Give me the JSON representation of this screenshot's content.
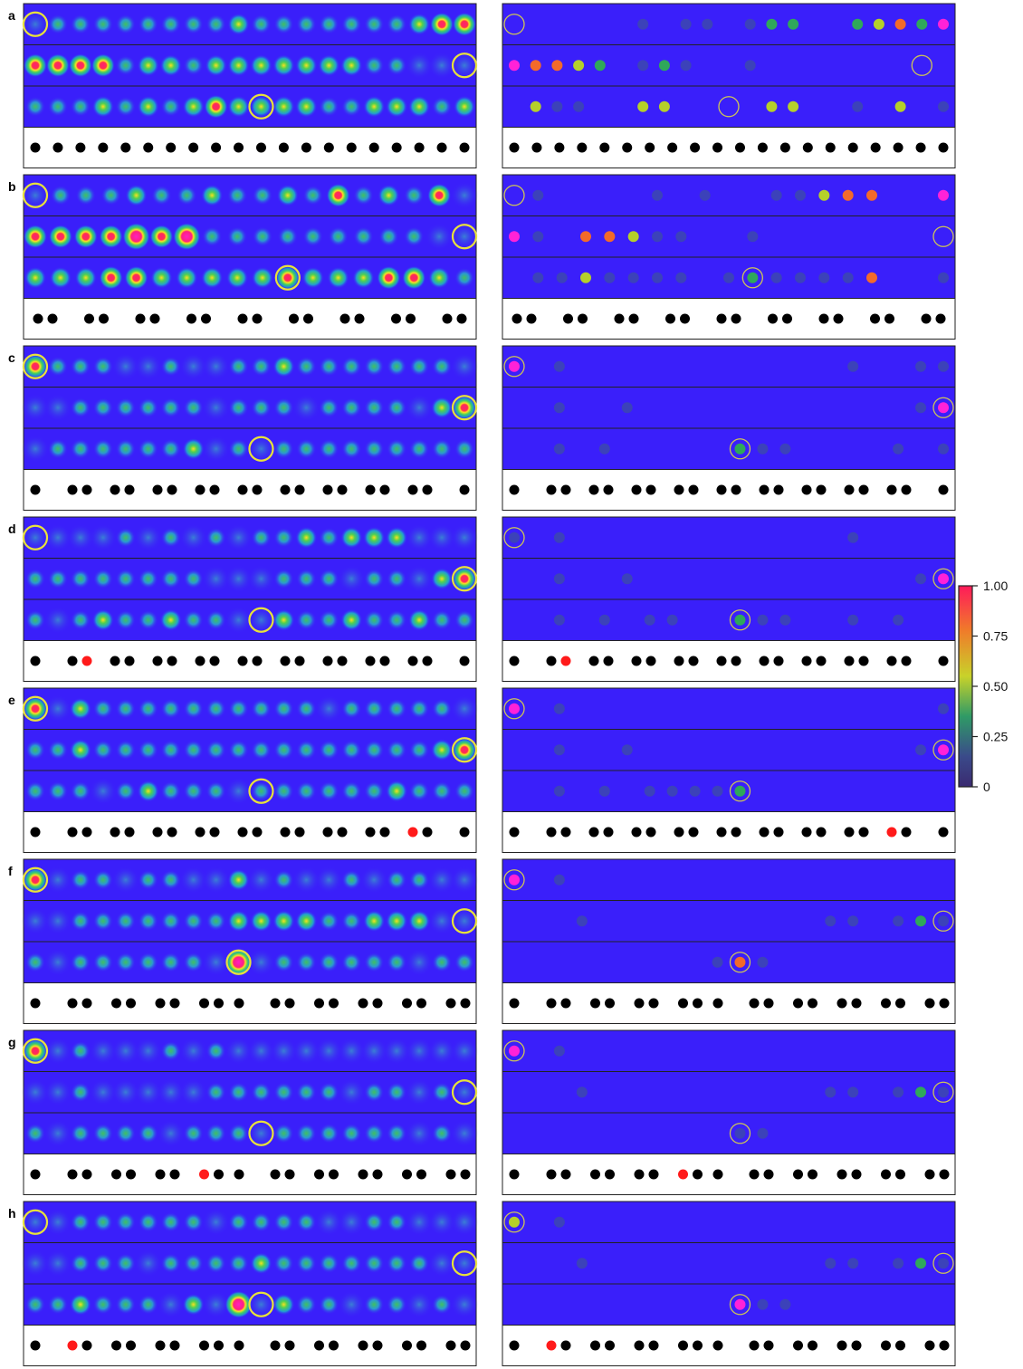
{
  "colors": {
    "background_blue": "#3a1ffa",
    "ring": "#e8e23a",
    "atom_black": "#000000",
    "atom_red": "#ff1a1a",
    "frame": "#222222"
  },
  "colorbar": {
    "ticks": [
      "1.00",
      "0.75",
      "0.50",
      "0.25",
      "0"
    ],
    "stops": [
      "#ff1a5a",
      "#f07a2a",
      "#c8d22a",
      "#3a9a60",
      "#3a3a8a",
      "#3a2a78"
    ]
  },
  "panels": [
    {
      "label": "a",
      "row_dots": [
        [
          0,
          1,
          1,
          1,
          1,
          1,
          1,
          1,
          1,
          2,
          1,
          1,
          1,
          1,
          1,
          1,
          1,
          2,
          3,
          3
        ],
        [
          3,
          3,
          3,
          3,
          1,
          2,
          2,
          1,
          2,
          2,
          2,
          2,
          2,
          2,
          2,
          1,
          1,
          0,
          0,
          0
        ],
        [
          1,
          1,
          1,
          2,
          1,
          2,
          1,
          2,
          3,
          2,
          2,
          2,
          2,
          1,
          1,
          2,
          2,
          2,
          1,
          2
        ]
      ],
      "row_rings": [
        0,
        19,
        10
      ],
      "right_dots": [
        [
          0,
          0,
          0,
          0,
          0,
          0,
          1,
          0,
          1,
          1,
          0,
          1,
          2,
          2,
          0,
          0,
          2,
          3,
          4,
          2,
          5
        ],
        [
          5,
          4,
          4,
          3,
          2,
          0,
          1,
          2,
          1,
          0,
          0,
          1,
          0,
          0,
          0,
          0,
          0,
          0,
          0,
          0,
          0
        ],
        [
          0,
          3,
          1,
          1,
          0,
          0,
          3,
          3,
          0,
          0,
          0,
          0,
          3,
          3,
          0,
          0,
          1,
          0,
          3,
          0,
          1
        ]
      ],
      "right_rings": [
        0,
        19,
        10
      ],
      "atom_pattern": "single",
      "red_atom": -1
    },
    {
      "label": "b",
      "row_dots": [
        [
          0,
          1,
          1,
          1,
          2,
          1,
          1,
          2,
          1,
          1,
          2,
          1,
          3,
          1,
          2,
          1,
          3,
          0
        ],
        [
          3,
          3,
          3,
          3,
          4,
          3,
          4,
          1,
          1,
          1,
          1,
          1,
          1,
          1,
          1,
          1,
          0,
          0
        ],
        [
          2,
          2,
          2,
          3,
          3,
          2,
          2,
          2,
          2,
          2,
          3,
          2,
          2,
          2,
          3,
          3,
          2,
          1
        ]
      ],
      "row_rings": [
        0,
        17,
        10
      ],
      "right_dots": [
        [
          0,
          1,
          0,
          0,
          0,
          0,
          1,
          0,
          1,
          0,
          0,
          1,
          1,
          3,
          4,
          4,
          0,
          0,
          5
        ],
        [
          5,
          1,
          0,
          4,
          4,
          3,
          1,
          1,
          0,
          0,
          1,
          0,
          0,
          0,
          0,
          0,
          0,
          0,
          0
        ],
        [
          0,
          1,
          1,
          3,
          1,
          1,
          1,
          1,
          0,
          1,
          2,
          1,
          1,
          1,
          1,
          4,
          0,
          0,
          1
        ]
      ],
      "right_rings": [
        0,
        18,
        10
      ],
      "atom_pattern": "pairs",
      "red_atom": -1
    },
    {
      "label": "c",
      "row_dots": [
        [
          3,
          1,
          1,
          1,
          0,
          0,
          1,
          0,
          0,
          1,
          1,
          2,
          1,
          1,
          1,
          1,
          1,
          1,
          1,
          0
        ],
        [
          0,
          0,
          1,
          1,
          1,
          1,
          1,
          1,
          0,
          1,
          1,
          1,
          0,
          1,
          1,
          1,
          1,
          0,
          2,
          3
        ],
        [
          0,
          1,
          1,
          1,
          1,
          1,
          1,
          2,
          0,
          1,
          0,
          1,
          1,
          1,
          1,
          1,
          1,
          1,
          1,
          1
        ]
      ],
      "row_rings": [
        0,
        19,
        10
      ],
      "right_dots": [
        [
          5,
          0,
          1,
          0,
          0,
          0,
          0,
          0,
          0,
          0,
          0,
          0,
          0,
          0,
          0,
          1,
          0,
          0,
          1,
          1
        ],
        [
          0,
          0,
          1,
          0,
          0,
          1,
          0,
          0,
          0,
          0,
          0,
          0,
          0,
          0,
          0,
          0,
          0,
          0,
          1,
          5
        ],
        [
          0,
          0,
          1,
          0,
          1,
          0,
          0,
          0,
          0,
          0,
          2,
          1,
          1,
          0,
          0,
          0,
          0,
          1,
          0,
          1
        ]
      ],
      "right_rings": [
        0,
        19,
        10
      ],
      "atom_pattern": "pairs_c",
      "red_atom": -1
    },
    {
      "label": "d",
      "row_dots": [
        [
          0,
          0,
          0,
          0,
          1,
          0,
          1,
          0,
          1,
          0,
          1,
          1,
          2,
          1,
          2,
          2,
          2,
          0,
          0,
          0
        ],
        [
          1,
          1,
          1,
          1,
          1,
          1,
          1,
          1,
          0,
          0,
          0,
          1,
          1,
          1,
          0,
          1,
          1,
          0,
          2,
          3
        ],
        [
          1,
          0,
          1,
          2,
          1,
          1,
          2,
          1,
          1,
          0,
          0,
          2,
          1,
          1,
          2,
          1,
          1,
          2,
          1,
          1
        ]
      ],
      "row_rings": [
        0,
        19,
        10
      ],
      "right_dots": [
        [
          1,
          0,
          1,
          0,
          0,
          0,
          0,
          0,
          0,
          0,
          0,
          0,
          0,
          0,
          0,
          1,
          0,
          0,
          0,
          0
        ],
        [
          0,
          0,
          1,
          0,
          0,
          1,
          0,
          0,
          0,
          0,
          0,
          0,
          0,
          0,
          0,
          0,
          0,
          0,
          1,
          5
        ],
        [
          0,
          0,
          1,
          0,
          1,
          0,
          1,
          1,
          0,
          0,
          2,
          1,
          1,
          0,
          0,
          1,
          0,
          1,
          0,
          0
        ]
      ],
      "right_rings": [
        0,
        19,
        10
      ],
      "atom_pattern": "pairs_c",
      "red_atom": 2
    },
    {
      "label": "e",
      "row_dots": [
        [
          3,
          0,
          2,
          1,
          1,
          1,
          1,
          1,
          1,
          1,
          1,
          1,
          1,
          0,
          1,
          1,
          1,
          1,
          1,
          0
        ],
        [
          1,
          1,
          2,
          1,
          1,
          1,
          1,
          1,
          1,
          1,
          1,
          1,
          1,
          1,
          1,
          1,
          1,
          1,
          2,
          3
        ],
        [
          1,
          1,
          1,
          0,
          1,
          2,
          1,
          1,
          1,
          0,
          1,
          1,
          1,
          1,
          1,
          1,
          2,
          1,
          1,
          1
        ]
      ],
      "row_rings": [
        0,
        19,
        10
      ],
      "right_dots": [
        [
          5,
          0,
          1,
          0,
          0,
          0,
          0,
          0,
          0,
          0,
          0,
          0,
          0,
          0,
          0,
          0,
          0,
          0,
          0,
          1
        ],
        [
          0,
          0,
          1,
          0,
          0,
          1,
          0,
          0,
          0,
          0,
          0,
          0,
          0,
          0,
          0,
          0,
          0,
          0,
          1,
          5
        ],
        [
          0,
          0,
          1,
          0,
          1,
          0,
          1,
          1,
          1,
          1,
          2,
          0,
          0,
          0,
          0,
          0,
          0,
          0,
          0,
          0
        ]
      ],
      "right_rings": [
        0,
        19,
        10
      ],
      "atom_pattern": "pairs_c",
      "red_atom": 17
    },
    {
      "label": "f",
      "row_dots": [
        [
          3,
          0,
          1,
          1,
          0,
          1,
          1,
          0,
          0,
          2,
          0,
          1,
          0,
          0,
          1,
          0,
          1,
          1,
          0,
          0
        ],
        [
          0,
          0,
          1,
          1,
          1,
          1,
          1,
          1,
          1,
          2,
          2,
          2,
          2,
          1,
          1,
          2,
          2,
          2,
          0,
          0
        ],
        [
          1,
          0,
          1,
          1,
          1,
          1,
          1,
          1,
          0,
          4,
          0,
          1,
          1,
          1,
          1,
          1,
          1,
          0,
          1,
          1
        ]
      ],
      "row_rings": [
        0,
        19,
        9
      ],
      "right_dots": [
        [
          5,
          0,
          1,
          0,
          0,
          0,
          0,
          0,
          0,
          0,
          0,
          0,
          0,
          0,
          0,
          0,
          0,
          0,
          0,
          0
        ],
        [
          0,
          0,
          0,
          1,
          0,
          0,
          0,
          0,
          0,
          0,
          0,
          0,
          0,
          0,
          1,
          1,
          0,
          1,
          2,
          1
        ],
        [
          0,
          0,
          0,
          0,
          0,
          0,
          0,
          0,
          0,
          1,
          4,
          1,
          0,
          0,
          0,
          0,
          0,
          0,
          0,
          0
        ]
      ],
      "right_rings": [
        0,
        19,
        10
      ],
      "atom_pattern": "pairs_f",
      "red_atom": -1
    },
    {
      "label": "g",
      "row_dots": [
        [
          3,
          0,
          1,
          0,
          0,
          0,
          1,
          0,
          1,
          0,
          0,
          0,
          0,
          0,
          0,
          0,
          0,
          0,
          0,
          0
        ],
        [
          0,
          0,
          1,
          0,
          0,
          0,
          0,
          0,
          1,
          1,
          1,
          1,
          1,
          1,
          0,
          1,
          1,
          0,
          1,
          0
        ],
        [
          1,
          0,
          1,
          1,
          1,
          1,
          0,
          1,
          1,
          1,
          0,
          1,
          1,
          1,
          1,
          1,
          1,
          0,
          1,
          0
        ]
      ],
      "row_rings": [
        0,
        19,
        10
      ],
      "right_dots": [
        [
          5,
          0,
          1,
          0,
          0,
          0,
          0,
          0,
          0,
          0,
          0,
          0,
          0,
          0,
          0,
          0,
          0,
          0,
          0,
          0
        ],
        [
          0,
          0,
          0,
          1,
          0,
          0,
          0,
          0,
          0,
          0,
          0,
          0,
          0,
          0,
          1,
          1,
          0,
          1,
          2,
          1
        ],
        [
          0,
          0,
          0,
          0,
          0,
          0,
          0,
          0,
          0,
          0,
          1,
          1,
          0,
          0,
          0,
          0,
          0,
          0,
          0,
          0
        ]
      ],
      "right_rings": [
        0,
        19,
        10
      ],
      "atom_pattern": "pairs_f",
      "red_atom": 7
    },
    {
      "label": "h",
      "row_dots": [
        [
          0,
          0,
          1,
          1,
          1,
          1,
          1,
          1,
          0,
          1,
          1,
          1,
          1,
          0,
          0,
          1,
          1,
          0,
          0,
          0
        ],
        [
          0,
          0,
          1,
          1,
          1,
          0,
          1,
          1,
          1,
          1,
          2,
          1,
          1,
          1,
          1,
          1,
          1,
          1,
          0,
          0
        ],
        [
          1,
          1,
          2,
          1,
          1,
          1,
          0,
          2,
          0,
          4,
          0,
          2,
          1,
          1,
          0,
          1,
          1,
          0,
          1,
          0
        ]
      ],
      "row_rings": [
        0,
        19,
        10
      ],
      "right_dots": [
        [
          3,
          0,
          1,
          0,
          0,
          0,
          0,
          0,
          0,
          0,
          0,
          0,
          0,
          0,
          0,
          0,
          0,
          0,
          0,
          0
        ],
        [
          0,
          0,
          0,
          1,
          0,
          0,
          0,
          0,
          0,
          0,
          0,
          0,
          0,
          0,
          1,
          1,
          0,
          1,
          2,
          1
        ],
        [
          0,
          0,
          0,
          0,
          0,
          0,
          0,
          0,
          0,
          0,
          5,
          1,
          1,
          0,
          0,
          0,
          0,
          0,
          0,
          0
        ]
      ],
      "right_rings": [
        0,
        19,
        10
      ],
      "atom_pattern": "pairs_f",
      "red_atom": 1
    }
  ]
}
